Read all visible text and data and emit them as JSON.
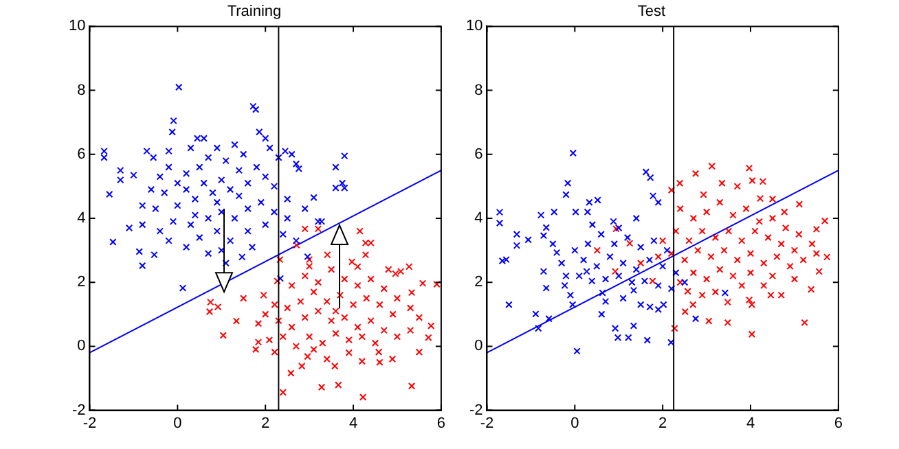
{
  "chart_data": [
    {
      "type": "scatter",
      "title": "Training",
      "xlim": [
        -2,
        6
      ],
      "ylim": [
        -2,
        10
      ],
      "xticks": [
        -2,
        0,
        2,
        4,
        6
      ],
      "yticks": [
        -2,
        0,
        2,
        4,
        6,
        8,
        10
      ],
      "grid": false,
      "legend": false,
      "ref_lines": [
        {
          "axis": "x",
          "value": 2.3,
          "color": "#000000"
        }
      ],
      "series": [
        {
          "color": "#0000ff",
          "marker": "cross",
          "x": [
            0.03,
            -0.09,
            -0.12,
            1.78,
            1.72,
            1.86,
            2.0,
            -1.67,
            -1.67,
            -1.3,
            -1.3,
            -1.0,
            -1.55,
            -0.7,
            -0.55,
            2.45,
            2.6,
            2.7,
            2.76,
            3.1,
            3.6,
            3.8,
            3.75,
            3.8,
            3.6,
            3.2,
            -1.47,
            -0.87,
            -0.8,
            -0.53,
            0.12,
            1.47,
            2.34,
            2.96,
            3.28,
            0.3,
            0.45,
            0.6,
            0.9,
            0.7,
            0.5,
            0.2,
            -0.2,
            -0.4,
            -0.6,
            -0.8,
            -0.5,
            -0.3,
            0.0,
            0.2,
            0.4,
            0.6,
            0.8,
            1.0,
            1.2,
            1.4,
            1.6,
            1.8,
            2.0,
            2.2,
            1.5,
            1.1,
            2.3,
            2.5,
            2.2,
            1.9,
            1.6,
            1.3,
            1.0,
            0.7,
            0.3,
            -0.1,
            -0.4,
            -0.8,
            -1.1,
            0.5,
            0.9,
            1.2,
            1.6,
            2.0,
            2.4,
            2.7,
            0.2,
            0.7,
            1.0,
            -0.2,
            1.7,
            2.5,
            2.9,
            0.0,
            0.9,
            1.4,
            1.1,
            0.4,
            -0.2,
            1.3,
            2.1
          ],
          "values": [
            8.1,
            7.05,
            6.7,
            7.4,
            7.5,
            6.7,
            6.5,
            6.1,
            5.9,
            5.5,
            5.2,
            5.35,
            4.75,
            6.1,
            5.9,
            6.1,
            6.0,
            5.7,
            5.55,
            4.65,
            5.6,
            5.95,
            5.1,
            4.95,
            4.95,
            3.9,
            3.26,
            2.96,
            2.52,
            2.86,
            1.82,
            2.79,
            2.12,
            2.8,
            3.9,
            6.2,
            6.5,
            6.5,
            6.2,
            5.9,
            5.6,
            5.4,
            5.6,
            5.3,
            4.9,
            4.4,
            4.3,
            4.8,
            5.1,
            4.9,
            4.6,
            5.1,
            4.8,
            5.2,
            4.9,
            5.5,
            5.1,
            5.6,
            5.3,
            5.0,
            6.0,
            5.8,
            5.9,
            4.6,
            4.2,
            4.5,
            4.3,
            4.0,
            4.2,
            4.0,
            3.8,
            3.9,
            3.6,
            3.8,
            3.7,
            3.4,
            3.6,
            3.3,
            3.6,
            3.8,
            3.5,
            3.3,
            3.1,
            2.9,
            3.0,
            3.3,
            3.1,
            4.0,
            4.3,
            4.4,
            4.5,
            4.7,
            2.6,
            4.1,
            6.1,
            6.3,
            6.2
          ]
        },
        {
          "color": "#ff0000",
          "marker": "cross",
          "x": [
            2.4,
            4.22,
            3.66,
            3.28,
            5.33,
            5.5,
            5.9,
            4.15,
            4.28,
            4.4,
            2.9,
            3.2,
            3.0,
            0.73,
            0.75,
            0.92,
            1.04,
            1.34,
            1.84,
            1.84,
            2.09,
            1.78,
            2.21,
            2.58,
            2.83,
            2.96,
            3.58,
            4.2,
            4.58,
            4.89,
            5.71,
            5.77,
            5.33,
            5.58,
            4.96,
            5.08,
            5.27,
            4.28,
            3.97,
            4.1,
            3.41,
            2.71,
            2.33,
            2.27,
            2.21,
            1.96,
            2.6,
            2.9,
            3.2,
            3.5,
            3.8,
            4.1,
            4.4,
            4.7,
            5.0,
            5.3,
            5.5,
            4.9,
            4.6,
            4.3,
            4.0,
            3.7,
            3.4,
            3.1,
            2.8,
            2.5,
            2.3,
            2.6,
            2.9,
            3.2,
            3.5,
            3.8,
            4.1,
            4.4,
            4.7,
            5.0,
            5.3,
            4.5,
            4.2,
            3.9,
            3.6,
            3.3,
            3.0,
            2.7,
            2.4,
            3.1,
            3.9,
            4.6,
            3.4,
            2.0,
            1.5,
            3.6,
            4.8,
            3.0
          ],
          "values": [
            -1.44,
            -1.59,
            -1.21,
            -1.28,
            -1.24,
            -0.18,
            1.94,
            3.6,
            3.23,
            3.23,
            3.67,
            3.67,
            2.71,
            1.08,
            1.38,
            1.23,
            0.34,
            0.79,
            0.71,
            0.13,
            0.2,
            -0.1,
            -0.18,
            -0.84,
            -0.62,
            -0.32,
            -0.62,
            -0.47,
            -0.18,
            -0.4,
            0.27,
            0.64,
            1.68,
            1.97,
            2.27,
            2.34,
            2.49,
            2.86,
            2.64,
            2.49,
            2.86,
            3.16,
            2.71,
            2.04,
            1.3,
            1.6,
            1.9,
            2.2,
            2.0,
            2.4,
            2.1,
            1.9,
            2.1,
            1.8,
            1.5,
            1.2,
            0.9,
            1.0,
            1.3,
            1.5,
            1.3,
            1.6,
            1.4,
            1.7,
            1.4,
            1.2,
            0.8,
            0.6,
            0.9,
            1.1,
            0.8,
            0.9,
            0.6,
            0.8,
            0.5,
            0.3,
            0.5,
            0.1,
            0.3,
            0.2,
            0.4,
            0.1,
            0.3,
            0.0,
            0.3,
            -0.1,
            -0.2,
            -0.5,
            -0.4,
            1.0,
            1.5,
            1.1,
            2.4,
            2.5
          ]
        },
        {
          "type": "line",
          "color": "#0000ff",
          "marker": "none",
          "x": [
            -2,
            6
          ],
          "values": [
            -0.2,
            5.5
          ]
        }
      ]
    },
    {
      "type": "scatter",
      "title": "Test",
      "xlim": [
        -2,
        6
      ],
      "ylim": [
        -2,
        10
      ],
      "xticks": [
        -2,
        0,
        2,
        4,
        6
      ],
      "yticks": [
        -2,
        0,
        2,
        4,
        6,
        8,
        10
      ],
      "grid": false,
      "legend": false,
      "ref_lines": [
        {
          "axis": "x",
          "value": 2.25,
          "color": "#000000"
        }
      ],
      "series": [
        {
          "color": "#0000ff",
          "marker": "cross",
          "x": [
            -0.04,
            -0.16,
            -0.2,
            -1.71,
            -1.71,
            -1.32,
            -1.32,
            -1.06,
            -1.65,
            1.62,
            1.72,
            1.78,
            1.9,
            0.33,
            0.52,
            0.29,
            0.02,
            -0.77,
            -0.47,
            -0.65,
            -0.71,
            -0.41,
            0.88,
            -1.56,
            -1.5,
            -0.89,
            -0.59,
            -0.83,
            0.05,
            -0.05,
            0.98,
            1.22,
            1.34,
            1.65,
            2.19,
            0.92,
            0.61,
            1.71,
            1.9,
            2.02,
            2.75,
            3.42,
            -0.71,
            -0.65,
            -0.23,
            -0.1,
            0.39,
            0.27,
            0.63,
            1.34,
            1.59,
            0.0,
            0.3,
            0.6,
            0.9,
            1.2,
            1.5,
            1.8,
            2.1,
            0.2,
            0.5,
            0.8,
            1.1,
            1.4,
            1.7,
            2.0,
            2.3,
            0.1,
            0.7,
            1.0,
            1.3,
            1.9,
            2.2,
            -0.3,
            -0.5,
            0.4,
            1.0,
            1.4,
            0.7,
            1.1,
            1.5,
            2.5,
            -0.2
          ],
          "values": [
            6.04,
            5.1,
            4.74,
            4.19,
            3.85,
            3.5,
            3.15,
            3.33,
            2.67,
            5.45,
            5.27,
            4.7,
            4.5,
            4.5,
            4.57,
            4.2,
            4.2,
            4.1,
            4.2,
            3.71,
            3.46,
            2.93,
            3.9,
            2.71,
            1.3,
            1.01,
            0.86,
            0.56,
            -0.15,
            1.3,
            0.27,
            0.27,
            0.64,
            0.19,
            0.12,
            0.56,
            1.0,
            1.23,
            1.15,
            1.3,
            0.86,
            1.67,
            2.34,
            1.82,
            1.9,
            1.6,
            2.04,
            2.34,
            1.67,
            1.75,
            2.04,
            3.0,
            3.2,
            3.5,
            3.2,
            3.4,
            3.1,
            3.3,
            3.0,
            2.7,
            2.5,
            2.8,
            2.6,
            2.4,
            2.7,
            2.5,
            2.3,
            2.2,
            2.1,
            2.2,
            2.0,
            1.9,
            1.8,
            2.6,
            3.2,
            3.8,
            3.7,
            4.0,
            1.4,
            1.5,
            1.3,
            2.0,
            2.2
          ]
        },
        {
          "color": "#ff0000",
          "marker": "cross",
          "x": [
            3.12,
            3.97,
            4.04,
            4.28,
            2.75,
            2.39,
            2.2,
            2.93,
            3.35,
            4.22,
            5.11,
            5.69,
            5.5,
            4.77,
            0.51,
            0.94,
            1.25,
            2.27,
            4.03,
            5.23,
            5.38,
            4.46,
            4.7,
            3.97,
            4.03,
            3.48,
            3.05,
            3.48,
            2.51,
            2.69,
            2.57,
            1.77,
            0.92,
            5.74,
            5.56,
            2.4,
            2.7,
            3.0,
            3.3,
            3.6,
            3.9,
            4.2,
            4.5,
            4.8,
            5.1,
            5.4,
            5.0,
            4.7,
            4.4,
            4.1,
            3.8,
            3.5,
            3.2,
            2.9,
            2.6,
            2.3,
            2.0,
            2.2,
            2.5,
            2.8,
            3.1,
            3.4,
            3.7,
            4.0,
            4.3,
            4.6,
            4.9,
            5.2,
            5.5,
            4.0,
            3.6,
            3.3,
            3.0,
            2.7,
            2.4,
            4.5,
            5.0,
            3.8,
            3.2,
            2.9,
            4.3,
            1.5,
            1.9,
            3.7,
            4.5
          ],
          "values": [
            5.63,
            5.57,
            5.18,
            5.15,
            5.4,
            5.1,
            4.88,
            4.74,
            5.1,
            4.62,
            4.44,
            3.92,
            3.66,
            4.2,
            3.0,
            3.67,
            3.22,
            0.56,
            0.38,
            0.74,
            1.78,
            1.6,
            1.6,
            1.45,
            1.3,
            1.38,
            0.79,
            0.74,
            1.08,
            1.3,
            1.72,
            2.04,
            2.34,
            2.79,
            2.34,
            4.3,
            4.0,
            4.2,
            4.5,
            4.1,
            4.3,
            3.9,
            4.0,
            3.7,
            3.5,
            3.2,
            3.0,
            3.2,
            3.4,
            3.6,
            3.3,
            3.6,
            3.4,
            3.6,
            3.3,
            3.6,
            3.3,
            2.9,
            2.7,
            3.0,
            2.8,
            3.0,
            2.7,
            2.9,
            2.6,
            2.8,
            2.5,
            2.7,
            2.9,
            2.3,
            2.2,
            2.4,
            2.1,
            2.3,
            2.0,
            2.2,
            2.1,
            1.9,
            1.7,
            1.6,
            1.9,
            2.6,
            2.8,
            5.0,
            4.6
          ]
        },
        {
          "type": "line",
          "color": "#0000ff",
          "marker": "none",
          "x": [
            -2,
            6
          ],
          "values": [
            -0.2,
            5.5
          ]
        }
      ]
    }
  ]
}
